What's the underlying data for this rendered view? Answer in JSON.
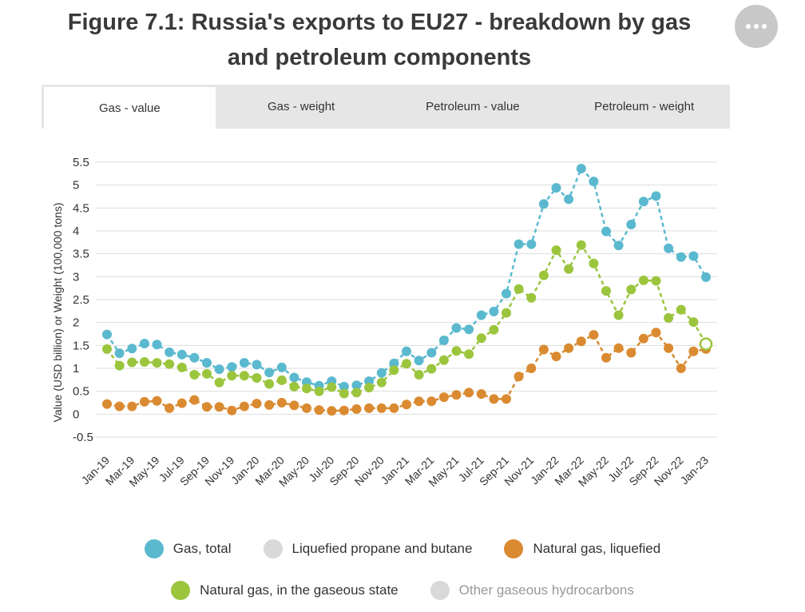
{
  "title": "Figure 7.1: Russia's exports to EU27 - breakdown by gas and petroleum components",
  "tabs": [
    {
      "label": "Gas - value",
      "active": true
    },
    {
      "label": "Gas - weight",
      "active": false
    },
    {
      "label": "Petroleum - value",
      "active": false
    },
    {
      "label": "Petroleum - weight",
      "active": false
    }
  ],
  "legend": [
    {
      "label": "Gas, total",
      "color": "#5ab9cf",
      "muted": false
    },
    {
      "label": "Liquefied propane and butane",
      "color": "#d9d9d9",
      "muted": false
    },
    {
      "label": "Natural gas, liquefied",
      "color": "#da8a30",
      "muted": false
    },
    {
      "label": "Natural gas, in the gaseous state",
      "color": "#9bc53d",
      "muted": false
    },
    {
      "label": "Other gaseous hydrocarbons",
      "color": "#d9d9d9",
      "muted": true
    }
  ],
  "chart_data": {
    "type": "line",
    "title": "",
    "ylabel": "Value (USD billion) or Weight (100,000 tons)",
    "xlabel": "",
    "ylim": [
      -0.5,
      5.5
    ],
    "yticks": [
      "5.5",
      "5",
      "4.5",
      "4",
      "3.5",
      "3",
      "2.5",
      "2",
      "1.5",
      "1",
      "0.5",
      "0",
      "-0.5"
    ],
    "grid": true,
    "legend_position": "bottom",
    "x": [
      "Jan-19",
      "Feb-19",
      "Mar-19",
      "Apr-19",
      "May-19",
      "Jun-19",
      "Jul-19",
      "Aug-19",
      "Sep-19",
      "Oct-19",
      "Nov-19",
      "Dec-19",
      "Jan-20",
      "Feb-20",
      "Mar-20",
      "Apr-20",
      "May-20",
      "Jun-20",
      "Jul-20",
      "Aug-20",
      "Sep-20",
      "Oct-20",
      "Nov-20",
      "Dec-20",
      "Jan-21",
      "Feb-21",
      "Mar-21",
      "Apr-21",
      "May-21",
      "Jun-21",
      "Jul-21",
      "Aug-21",
      "Sep-21",
      "Oct-21",
      "Nov-21",
      "Dec-21",
      "Jan-22",
      "Feb-22",
      "Mar-22",
      "Apr-22",
      "May-22",
      "Jun-22",
      "Jul-22",
      "Aug-22",
      "Sep-22",
      "Oct-22",
      "Nov-22",
      "Dec-22",
      "Jan-23"
    ],
    "x_tick_labels": [
      "Jan-19",
      "Mar-19",
      "May-19",
      "Jul-19",
      "Sep-19",
      "Nov-19",
      "Jan-20",
      "Mar-20",
      "May-20",
      "Jul-20",
      "Sep-20",
      "Nov-20",
      "Jan-21",
      "Mar-21",
      "May-21",
      "Jul-21",
      "Sep-21",
      "Nov-21",
      "Jan-22",
      "Mar-22",
      "May-22",
      "Jul-22",
      "Sep-22",
      "Nov-22",
      "Jan-23"
    ],
    "series": [
      {
        "name": "Gas, total",
        "color": "#5ab9cf",
        "values": [
          1.74,
          1.33,
          1.43,
          1.54,
          1.52,
          1.35,
          1.3,
          1.23,
          1.12,
          0.98,
          1.03,
          1.12,
          1.08,
          0.91,
          1.02,
          0.8,
          0.7,
          0.62,
          0.72,
          0.6,
          0.63,
          0.72,
          0.9,
          1.11,
          1.37,
          1.17,
          1.34,
          1.61,
          1.88,
          1.85,
          2.16,
          2.24,
          2.63,
          3.71,
          3.71,
          4.59,
          4.94,
          4.69,
          5.36,
          5.08,
          3.99,
          3.68,
          4.14,
          4.64,
          4.76,
          3.62,
          3.43,
          3.45,
          2.99
        ]
      },
      {
        "name": "Natural gas, liquefied",
        "color": "#da8a30",
        "values": [
          0.22,
          0.17,
          0.17,
          0.27,
          0.29,
          0.13,
          0.24,
          0.31,
          0.16,
          0.16,
          0.08,
          0.17,
          0.23,
          0.2,
          0.25,
          0.19,
          0.13,
          0.09,
          0.07,
          0.08,
          0.11,
          0.13,
          0.13,
          0.13,
          0.21,
          0.28,
          0.28,
          0.37,
          0.42,
          0.47,
          0.44,
          0.33,
          0.33,
          0.82,
          1.0,
          1.41,
          1.26,
          1.44,
          1.59,
          1.73,
          1.23,
          1.44,
          1.34,
          1.65,
          1.78,
          1.44,
          1.0,
          1.37,
          1.42
        ]
      },
      {
        "name": "Natural gas, in the gaseous state",
        "color": "#9bc53d",
        "values": [
          1.42,
          1.06,
          1.13,
          1.14,
          1.12,
          1.09,
          1.02,
          0.86,
          0.88,
          0.69,
          0.84,
          0.84,
          0.79,
          0.66,
          0.74,
          0.6,
          0.56,
          0.5,
          0.59,
          0.45,
          0.47,
          0.58,
          0.69,
          0.96,
          1.1,
          0.86,
          0.99,
          1.18,
          1.38,
          1.31,
          1.66,
          1.84,
          2.21,
          2.73,
          2.54,
          3.03,
          3.58,
          3.17,
          3.69,
          3.29,
          2.69,
          2.16,
          2.72,
          2.92,
          2.91,
          2.1,
          2.28,
          2.01,
          1.53
        ]
      }
    ]
  }
}
